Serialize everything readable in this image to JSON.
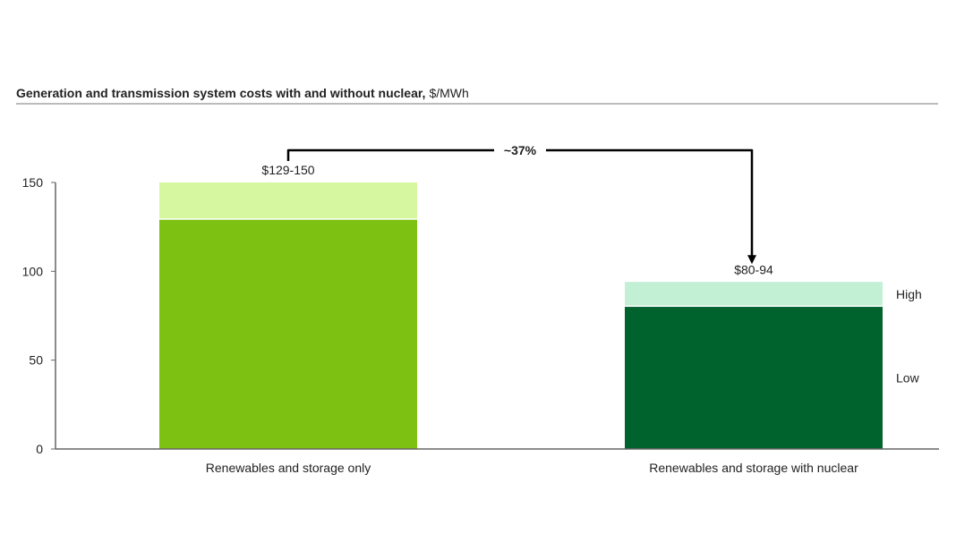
{
  "chart_data": {
    "type": "bar",
    "stacked": true,
    "title": "Generation and transmission system costs with and without nuclear,",
    "title_unit": "$/MWh",
    "categories": [
      "Renewables and storage only",
      "Renewables and storage with nuclear"
    ],
    "series": [
      {
        "name": "Low",
        "values": [
          129,
          80
        ]
      },
      {
        "name": "High",
        "values": [
          21,
          14
        ]
      }
    ],
    "totals": [
      150,
      94
    ],
    "data_labels": [
      "$129-150",
      "$80-94"
    ],
    "colors": {
      "low": [
        "#7DC212",
        "#00632E"
      ],
      "high": [
        "#D6F7A0",
        "#C1F0D4"
      ]
    },
    "ylim": [
      0,
      150
    ],
    "yticks": [
      0,
      50,
      100,
      150
    ],
    "grid": false,
    "legend_placement": "right",
    "annotation": {
      "text": "~37%",
      "from": 0,
      "to": 1
    }
  }
}
